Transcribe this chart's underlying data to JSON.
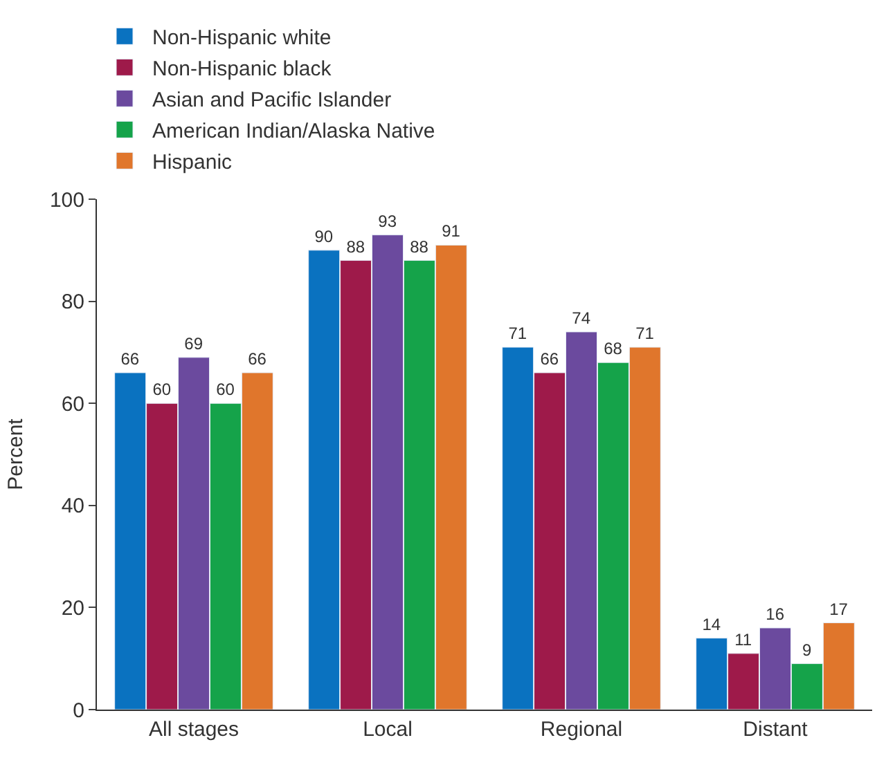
{
  "chart_data": {
    "type": "bar",
    "ylabel": "Percent",
    "categories": [
      "All stages",
      "Local",
      "Regional",
      "Distant"
    ],
    "series": [
      {
        "name": "Non-Hispanic white",
        "color": "#0a72c0",
        "values": [
          66,
          90,
          71,
          14
        ]
      },
      {
        "name": "Non-Hispanic black",
        "color": "#9e1a4a",
        "values": [
          60,
          88,
          66,
          11
        ]
      },
      {
        "name": "Asian and Pacific Islander",
        "color": "#6b4a9e",
        "values": [
          69,
          93,
          74,
          16
        ]
      },
      {
        "name": "American Indian/Alaska Native",
        "color": "#15a34a",
        "values": [
          60,
          88,
          68,
          9
        ]
      },
      {
        "name": "Hispanic",
        "color": "#e0762c",
        "values": [
          66,
          91,
          71,
          17
        ]
      }
    ],
    "ylim": [
      0,
      100
    ],
    "yticks": [
      0,
      20,
      40,
      60,
      80,
      100
    ],
    "grid": false,
    "legend": "top left",
    "data_labels": true
  }
}
